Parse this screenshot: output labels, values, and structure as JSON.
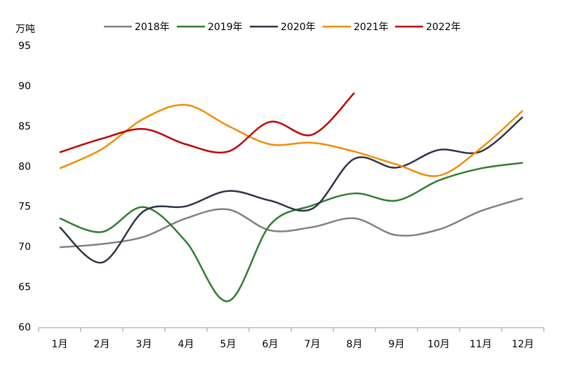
{
  "chart_data": {
    "type": "line",
    "y_label": "万吨",
    "categories": [
      "1月",
      "2月",
      "3月",
      "4月",
      "5月",
      "6月",
      "7月",
      "8月",
      "9月",
      "10月",
      "11月",
      "12月"
    ],
    "series": [
      {
        "name": "2018年",
        "color": "#808080",
        "values": [
          70.0,
          70.4,
          71.3,
          73.6,
          74.7,
          72.1,
          72.5,
          73.6,
          71.5,
          72.2,
          74.5,
          76.1
        ]
      },
      {
        "name": "2019年",
        "color": "#2e7d32",
        "values": [
          73.6,
          71.9,
          75.0,
          70.7,
          63.3,
          72.8,
          75.2,
          76.7,
          75.8,
          78.3,
          79.8,
          80.5
        ]
      },
      {
        "name": "2020年",
        "color": "#2b3445",
        "values": [
          72.5,
          68.1,
          74.5,
          75.1,
          77.0,
          75.8,
          74.8,
          81.0,
          79.9,
          82.1,
          81.9,
          86.2
        ]
      },
      {
        "name": "2021年",
        "color": "#f28c00",
        "values": [
          79.8,
          82.2,
          86.0,
          87.7,
          85.1,
          82.8,
          83.0,
          81.9,
          80.3,
          78.9,
          82.3,
          87.0
        ]
      },
      {
        "name": "2022年",
        "color": "#c00000",
        "values": [
          81.8,
          83.5,
          84.7,
          82.8,
          81.9,
          85.6,
          84.0,
          89.2,
          null,
          null,
          null,
          null
        ]
      }
    ],
    "ylim": [
      60,
      95
    ],
    "yticks": [
      60,
      65,
      70,
      75,
      80,
      85,
      90,
      95
    ],
    "grid": false,
    "legend": "top"
  }
}
